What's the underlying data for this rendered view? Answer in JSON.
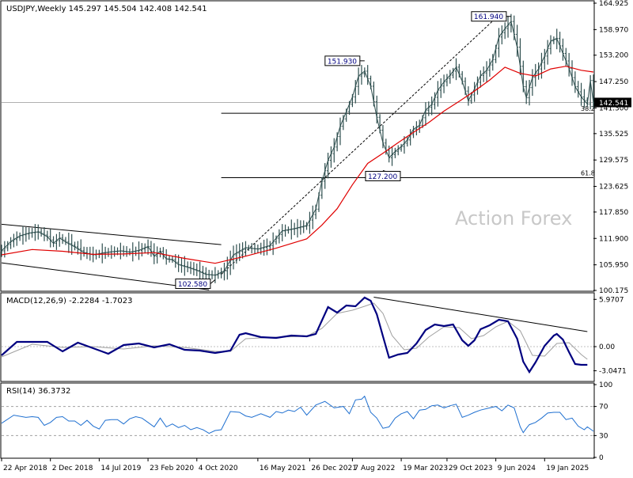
{
  "chart_data": {
    "type": "line",
    "price": {
      "header": "USDJPY,Weekly  145.297 145.504 142.408 142.541",
      "watermark": "Action Forex",
      "ylim": [
        100.175,
        164.925
      ],
      "y_ticks": [
        "164.925",
        "158.970",
        "153.200",
        "147.250",
        "141.300",
        "135.525",
        "129.575",
        "123.625",
        "117.850",
        "111.900",
        "105.950",
        "100.175"
      ],
      "last_price_label": "142.541",
      "last_price": 142.541,
      "callouts": [
        {
          "label": "102.580",
          "x": 70,
          "y": 102.58
        },
        {
          "label": "151.930",
          "x": 119,
          "y": 151.93
        },
        {
          "label": "127.200",
          "x": 125,
          "y": 127.2
        },
        {
          "label": "161.940",
          "x": 167,
          "y": 161.94
        }
      ],
      "fib_levels": [
        {
          "label": "38.2",
          "y": 140.1
        },
        {
          "label": "61.8",
          "y": 125.6
        }
      ],
      "channel_lines": [
        {
          "x": [
            0,
            72
          ],
          "y": [
            115.1,
            110.5
          ]
        },
        {
          "x": [
            0,
            68
          ],
          "y": [
            106.4,
            100.3
          ]
        }
      ],
      "trend_line": {
        "x": [
          72,
          163
        ],
        "y": [
          103.8,
          162.2
        ]
      },
      "close": [
        [
          0,
          109.1
        ],
        [
          3,
          111.2
        ],
        [
          6,
          112.5
        ],
        [
          9,
          113.1
        ],
        [
          12,
          113.4
        ],
        [
          15,
          112.3
        ],
        [
          17,
          110.8
        ],
        [
          19,
          112.0
        ],
        [
          21,
          111.1
        ],
        [
          24,
          110.0
        ],
        [
          27,
          108.7
        ],
        [
          30,
          108.2
        ],
        [
          33,
          108.6
        ],
        [
          36,
          108.9
        ],
        [
          39,
          109.1
        ],
        [
          42,
          108.8
        ],
        [
          45,
          109.2
        ],
        [
          48,
          110.1
        ],
        [
          50,
          107.9
        ],
        [
          52,
          109.0
        ],
        [
          54,
          107.3
        ],
        [
          56,
          107.1
        ],
        [
          58,
          106.0
        ],
        [
          61,
          105.4
        ],
        [
          64,
          104.7
        ],
        [
          67,
          103.8
        ],
        [
          70,
          103.6
        ],
        [
          73,
          104.6
        ],
        [
          76,
          108.2
        ],
        [
          80,
          109.8
        ],
        [
          84,
          109.5
        ],
        [
          88,
          110.3
        ],
        [
          92,
          113.6
        ],
        [
          96,
          114.1
        ],
        [
          100,
          114.8
        ],
        [
          103,
          118.5
        ],
        [
          105,
          124.8
        ],
        [
          107,
          129.5
        ],
        [
          109,
          132.5
        ],
        [
          111,
          137.2
        ],
        [
          113,
          140.5
        ],
        [
          115,
          143.8
        ],
        [
          117,
          148.5
        ],
        [
          119,
          149.6
        ],
        [
          121,
          146.2
        ],
        [
          123,
          139.2
        ],
        [
          125,
          133.4
        ],
        [
          127,
          130.1
        ],
        [
          129,
          131.5
        ],
        [
          131,
          132.6
        ],
        [
          133,
          134.1
        ],
        [
          135,
          136.5
        ],
        [
          137,
          137.4
        ],
        [
          139,
          140.8
        ],
        [
          141,
          142.1
        ],
        [
          143,
          145.3
        ],
        [
          145,
          147.2
        ],
        [
          147,
          148.7
        ],
        [
          149,
          150.5
        ],
        [
          151,
          147.3
        ],
        [
          153,
          142.9
        ],
        [
          155,
          145.6
        ],
        [
          157,
          148.6
        ],
        [
          159,
          149.8
        ],
        [
          161,
          152.2
        ],
        [
          163,
          157.3
        ],
        [
          165,
          159.2
        ],
        [
          167,
          160.8
        ],
        [
          169,
          155.0
        ],
        [
          170,
          150.7
        ],
        [
          171,
          146.1
        ],
        [
          172,
          143.6
        ],
        [
          174,
          148.2
        ],
        [
          176,
          150.1
        ],
        [
          178,
          153.0
        ],
        [
          180,
          156.4
        ],
        [
          182,
          157.0
        ],
        [
          184,
          153.6
        ],
        [
          186,
          150.2
        ],
        [
          188,
          146.1
        ],
        [
          190,
          143.8
        ],
        [
          192,
          142.2
        ],
        [
          193,
          147.5
        ],
        [
          194,
          142.5
        ]
      ],
      "ma": [
        [
          0,
          108.2
        ],
        [
          10,
          109.4
        ],
        [
          20,
          109.0
        ],
        [
          30,
          108.3
        ],
        [
          40,
          108.4
        ],
        [
          50,
          108.7
        ],
        [
          60,
          107.4
        ],
        [
          70,
          106.3
        ],
        [
          80,
          107.9
        ],
        [
          90,
          109.7
        ],
        [
          100,
          111.8
        ],
        [
          105,
          114.9
        ],
        [
          110,
          118.6
        ],
        [
          115,
          124.0
        ],
        [
          120,
          128.8
        ],
        [
          125,
          131.1
        ],
        [
          130,
          133.5
        ],
        [
          135,
          135.8
        ],
        [
          140,
          138.0
        ],
        [
          145,
          140.6
        ],
        [
          150,
          142.8
        ],
        [
          155,
          145.1
        ],
        [
          160,
          147.6
        ],
        [
          165,
          150.5
        ],
        [
          170,
          149.1
        ],
        [
          175,
          148.5
        ],
        [
          180,
          150.1
        ],
        [
          185,
          150.7
        ],
        [
          190,
          149.8
        ],
        [
          194,
          149.4
        ]
      ]
    },
    "macd": {
      "header": "MACD(12,26,9) -2.2284 -1.7023",
      "params": [
        12,
        26,
        9
      ],
      "macd_value": -2.2284,
      "signal_value": -1.7023,
      "ylim": [
        -4.3,
        6.6
      ],
      "y_ticks": [
        "5.9707",
        "0.00",
        "-3.0471"
      ],
      "zero_line": 0.0,
      "trend_line": {
        "x": [
          122,
          192
        ],
        "y": [
          6.25,
          1.9
        ]
      },
      "macd_line": [
        [
          0,
          -1.1
        ],
        [
          5,
          0.6
        ],
        [
          10,
          0.6
        ],
        [
          15,
          0.6
        ],
        [
          20,
          -0.6
        ],
        [
          25,
          0.5
        ],
        [
          30,
          -0.2
        ],
        [
          35,
          -0.9
        ],
        [
          40,
          0.2
        ],
        [
          45,
          0.4
        ],
        [
          50,
          -0.1
        ],
        [
          55,
          0.3
        ],
        [
          60,
          -0.4
        ],
        [
          65,
          -0.5
        ],
        [
          70,
          -0.8
        ],
        [
          75,
          -0.5
        ],
        [
          78,
          1.5
        ],
        [
          80,
          1.7
        ],
        [
          85,
          1.2
        ],
        [
          90,
          1.1
        ],
        [
          95,
          1.4
        ],
        [
          100,
          1.3
        ],
        [
          103,
          1.6
        ],
        [
          107,
          5.0
        ],
        [
          110,
          4.3
        ],
        [
          113,
          5.2
        ],
        [
          116,
          5.1
        ],
        [
          119,
          6.2
        ],
        [
          121,
          5.8
        ],
        [
          123,
          4.1
        ],
        [
          125,
          1.3
        ],
        [
          127,
          -1.4
        ],
        [
          130,
          -1.0
        ],
        [
          133,
          -0.8
        ],
        [
          136,
          0.4
        ],
        [
          139,
          2.1
        ],
        [
          142,
          2.8
        ],
        [
          145,
          2.6
        ],
        [
          148,
          2.8
        ],
        [
          151,
          0.8
        ],
        [
          153,
          0.1
        ],
        [
          155,
          0.8
        ],
        [
          157,
          2.2
        ],
        [
          160,
          2.7
        ],
        [
          163,
          3.4
        ],
        [
          166,
          3.2
        ],
        [
          169,
          1.0
        ],
        [
          171,
          -1.9
        ],
        [
          173,
          -3.2
        ],
        [
          175,
          -2.0
        ],
        [
          178,
          0.1
        ],
        [
          181,
          1.4
        ],
        [
          182,
          1.6
        ],
        [
          184,
          0.9
        ],
        [
          186,
          -0.7
        ],
        [
          188,
          -2.2
        ],
        [
          190,
          -2.3
        ],
        [
          192,
          -2.3
        ]
      ],
      "signal_line": [
        [
          0,
          -1.3
        ],
        [
          10,
          0.3
        ],
        [
          20,
          -0.1
        ],
        [
          30,
          0.0
        ],
        [
          40,
          -0.3
        ],
        [
          50,
          0.1
        ],
        [
          60,
          -0.1
        ],
        [
          70,
          -0.6
        ],
        [
          75,
          -0.6
        ],
        [
          80,
          1.0
        ],
        [
          90,
          1.2
        ],
        [
          100,
          1.3
        ],
        [
          105,
          2.3
        ],
        [
          110,
          4.2
        ],
        [
          115,
          4.6
        ],
        [
          119,
          5.1
        ],
        [
          122,
          5.5
        ],
        [
          125,
          4.2
        ],
        [
          128,
          1.4
        ],
        [
          132,
          -0.4
        ],
        [
          136,
          -0.2
        ],
        [
          140,
          1.2
        ],
        [
          145,
          2.5
        ],
        [
          150,
          2.4
        ],
        [
          154,
          1.0
        ],
        [
          158,
          1.4
        ],
        [
          162,
          2.5
        ],
        [
          166,
          3.2
        ],
        [
          170,
          2.0
        ],
        [
          174,
          -1.1
        ],
        [
          178,
          -1.2
        ],
        [
          182,
          0.4
        ],
        [
          186,
          0.5
        ],
        [
          190,
          -1.0
        ],
        [
          192,
          -1.6
        ]
      ]
    },
    "rsi": {
      "header": "RSI(14) 36.3732",
      "period": 14,
      "value": 36.3732,
      "ylim": [
        0,
        100
      ],
      "y_ticks": [
        "100",
        "70",
        "30",
        "0"
      ],
      "levels": [
        70,
        30
      ],
      "series": [
        [
          0,
          47
        ],
        [
          4,
          58
        ],
        [
          8,
          55
        ],
        [
          10,
          56
        ],
        [
          12,
          55
        ],
        [
          14,
          44
        ],
        [
          16,
          48
        ],
        [
          18,
          55
        ],
        [
          20,
          56
        ],
        [
          22,
          50
        ],
        [
          24,
          50
        ],
        [
          26,
          44
        ],
        [
          28,
          51
        ],
        [
          30,
          43
        ],
        [
          32,
          39
        ],
        [
          34,
          51
        ],
        [
          36,
          52
        ],
        [
          38,
          52
        ],
        [
          40,
          46
        ],
        [
          42,
          53
        ],
        [
          44,
          56
        ],
        [
          46,
          54
        ],
        [
          48,
          48
        ],
        [
          50,
          42
        ],
        [
          52,
          54
        ],
        [
          54,
          42
        ],
        [
          56,
          46
        ],
        [
          58,
          41
        ],
        [
          60,
          44
        ],
        [
          62,
          38
        ],
        [
          64,
          41
        ],
        [
          66,
          38
        ],
        [
          68,
          33
        ],
        [
          70,
          37
        ],
        [
          72,
          38
        ],
        [
          75,
          63
        ],
        [
          78,
          62
        ],
        [
          80,
          57
        ],
        [
          82,
          55
        ],
        [
          85,
          60
        ],
        [
          88,
          55
        ],
        [
          90,
          63
        ],
        [
          92,
          61
        ],
        [
          94,
          65
        ],
        [
          96,
          63
        ],
        [
          98,
          69
        ],
        [
          100,
          58
        ],
        [
          103,
          72
        ],
        [
          106,
          77
        ],
        [
          109,
          68
        ],
        [
          112,
          70
        ],
        [
          114,
          60
        ],
        [
          116,
          79
        ],
        [
          118,
          80
        ],
        [
          119,
          84
        ],
        [
          121,
          62
        ],
        [
          123,
          54
        ],
        [
          125,
          40
        ],
        [
          127,
          42
        ],
        [
          129,
          54
        ],
        [
          131,
          60
        ],
        [
          133,
          63
        ],
        [
          135,
          53
        ],
        [
          137,
          65
        ],
        [
          139,
          66
        ],
        [
          141,
          71
        ],
        [
          143,
          72
        ],
        [
          145,
          68
        ],
        [
          147,
          71
        ],
        [
          149,
          73
        ],
        [
          151,
          55
        ],
        [
          153,
          58
        ],
        [
          155,
          62
        ],
        [
          157,
          65
        ],
        [
          160,
          68
        ],
        [
          162,
          70
        ],
        [
          164,
          64
        ],
        [
          166,
          72
        ],
        [
          168,
          68
        ],
        [
          170,
          42
        ],
        [
          171,
          34
        ],
        [
          172,
          40
        ],
        [
          173,
          45
        ],
        [
          175,
          48
        ],
        [
          177,
          54
        ],
        [
          179,
          61
        ],
        [
          181,
          62
        ],
        [
          183,
          62
        ],
        [
          185,
          52
        ],
        [
          187,
          54
        ],
        [
          189,
          43
        ],
        [
          191,
          38
        ],
        [
          192,
          42
        ],
        [
          194,
          36
        ]
      ]
    },
    "x_axis": {
      "x_range": [
        0,
        194
      ],
      "labels": [
        {
          "label": "22 Apr 2018",
          "x": 0
        },
        {
          "label": "2 Dec 2018",
          "x": 16
        },
        {
          "label": "14 Jul 2019",
          "x": 32
        },
        {
          "label": "23 Feb 2020",
          "x": 48
        },
        {
          "label": "4 Oct 2020",
          "x": 64
        },
        {
          "label": "16 May 2021",
          "x": 84
        },
        {
          "label": "26 Dec 2021",
          "x": 101
        },
        {
          "label": "7 Aug 2022",
          "x": 115
        },
        {
          "label": "19 Mar 2023",
          "x": 131
        },
        {
          "label": "29 Oct 2023",
          "x": 146
        },
        {
          "label": "9 Jun 2024",
          "x": 162
        },
        {
          "label": "19 Jan 2025",
          "x": 178
        }
      ]
    }
  }
}
